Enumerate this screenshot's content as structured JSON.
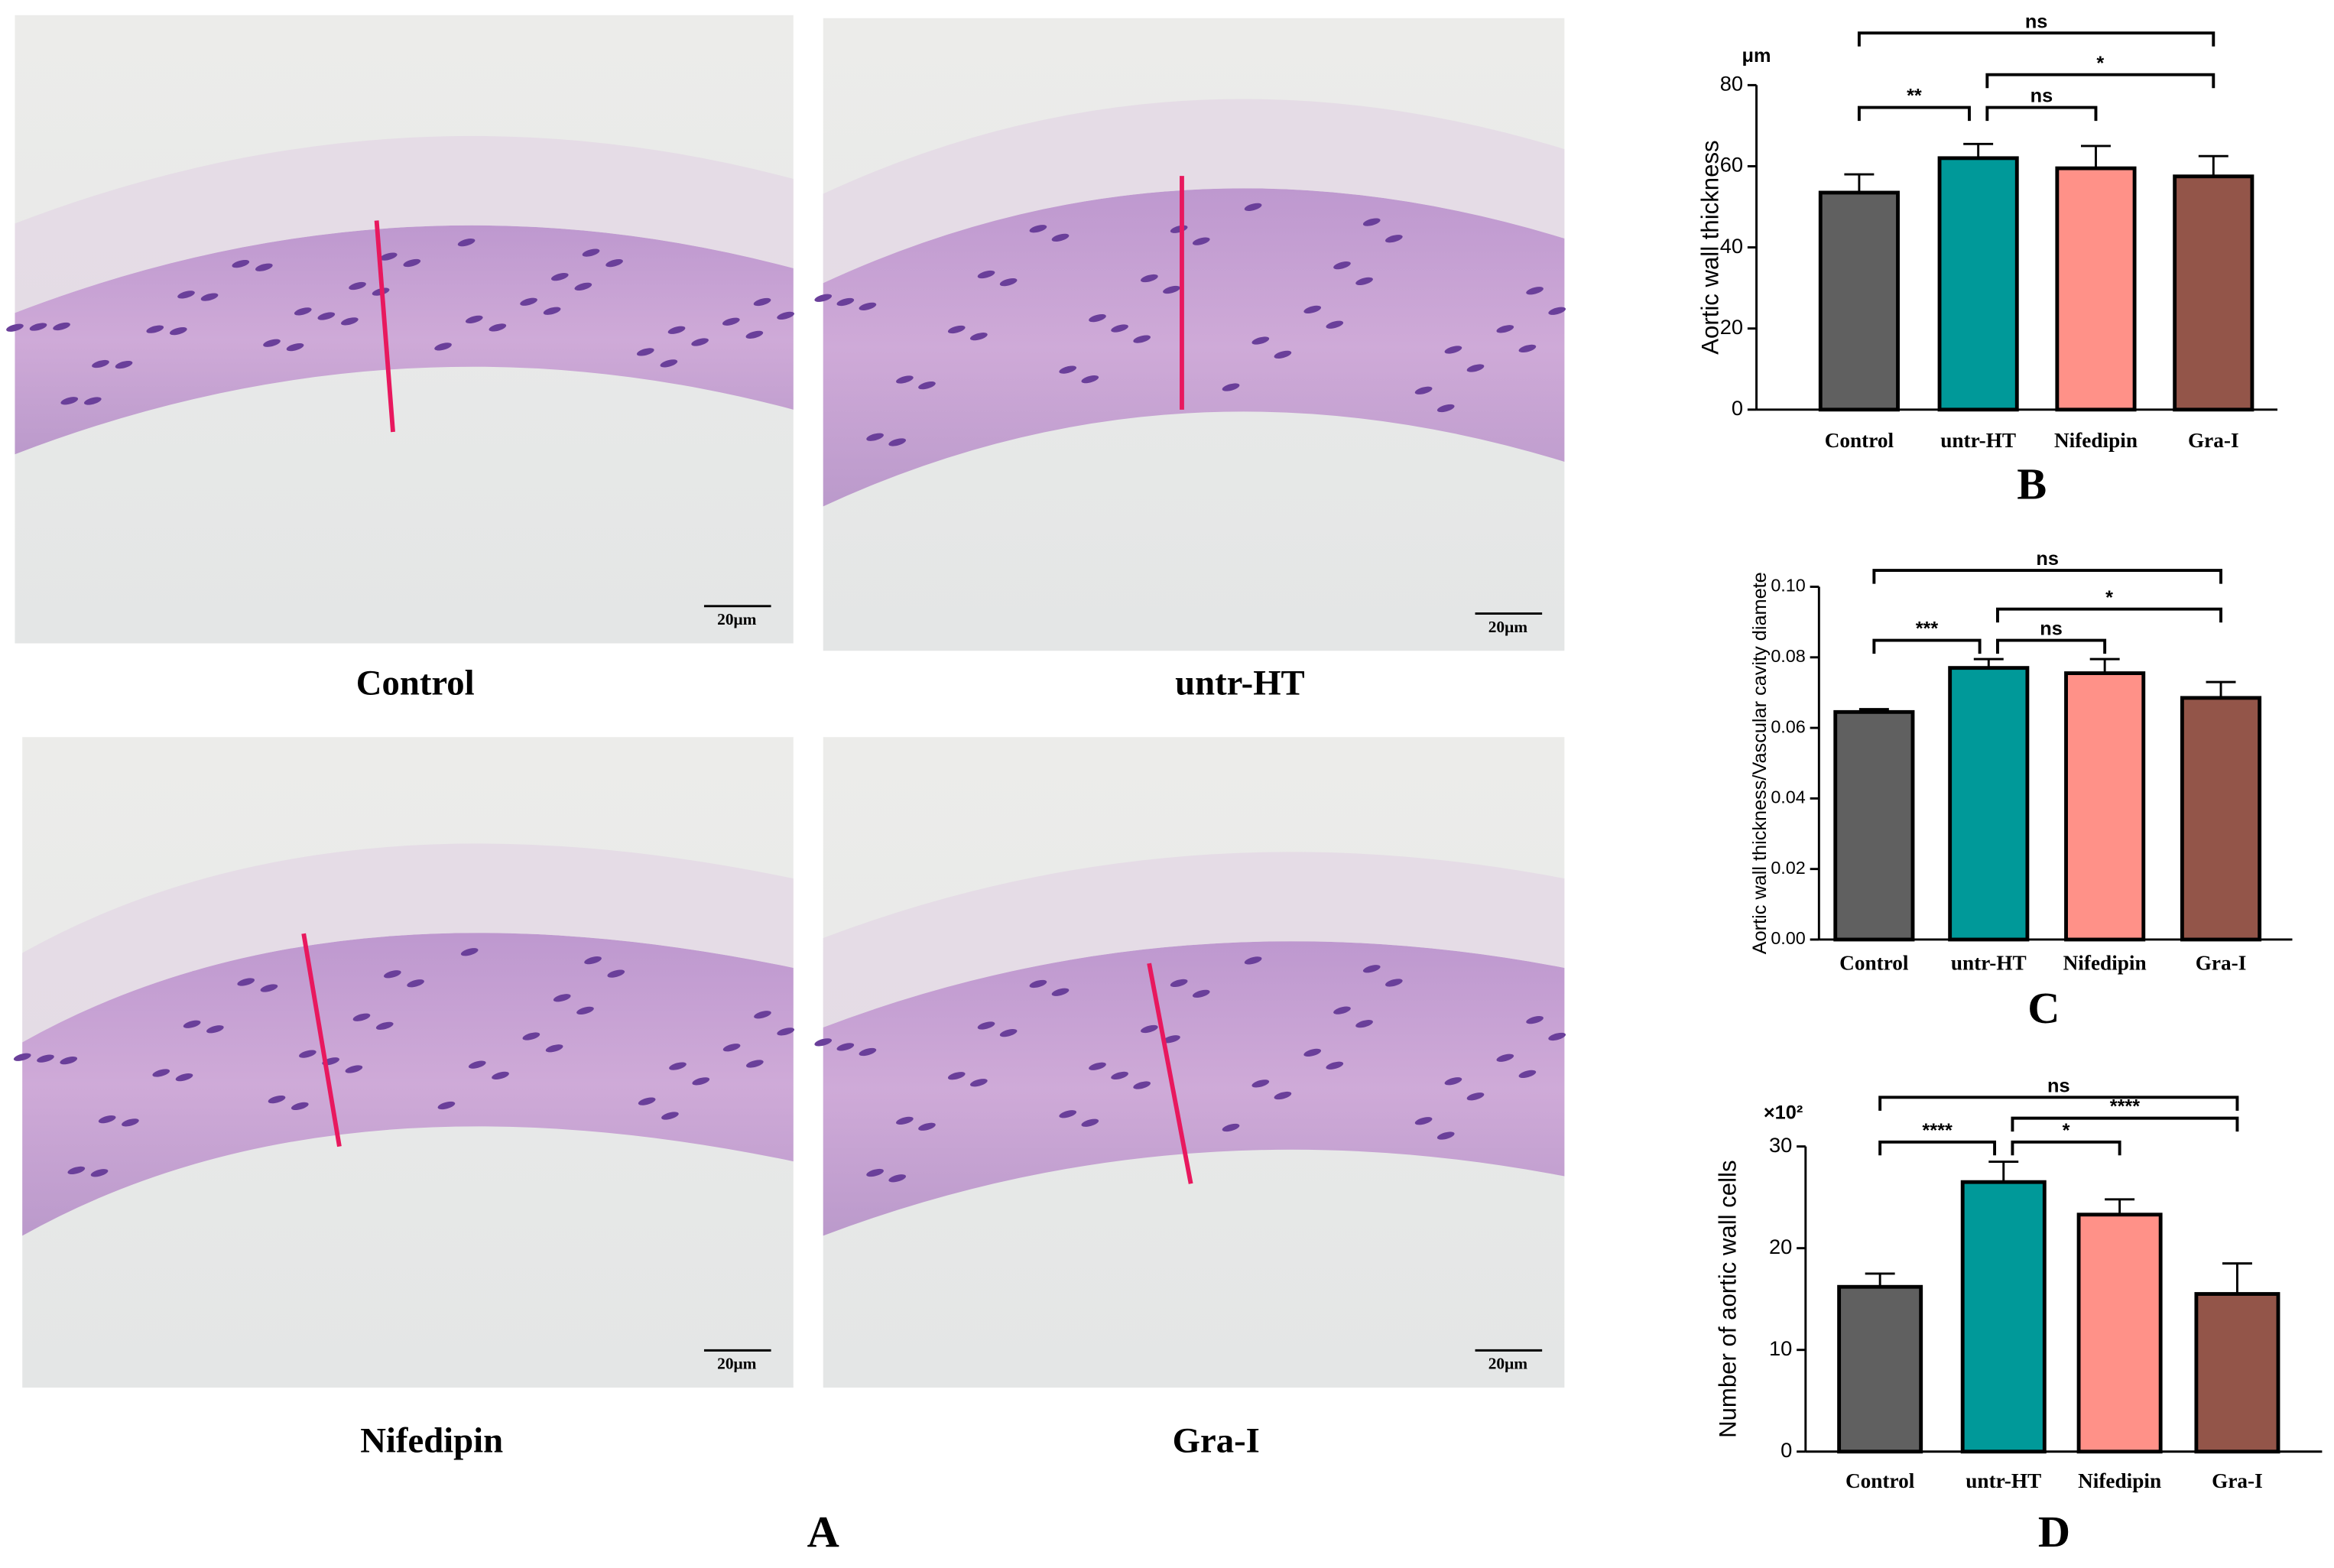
{
  "micrographs": {
    "panel": "A",
    "images": [
      {
        "label": "Control",
        "scale_bar": "20μm"
      },
      {
        "label": "untr-HT",
        "scale_bar": "20μm"
      },
      {
        "label": "Nifedipin",
        "scale_bar": "20μm"
      },
      {
        "label": "Gra-I",
        "scale_bar": "20μm"
      }
    ]
  },
  "chart_data": [
    {
      "type": "bar",
      "panel": "B",
      "y_label": "Aortic wall thickness",
      "y_unit": "μm",
      "categories": [
        "Control",
        "untr-HT",
        "Nifedipin",
        "Gra-I"
      ],
      "values": [
        53.5,
        62,
        59.5,
        57.5
      ],
      "errors": [
        4.5,
        3.5,
        5.5,
        5
      ],
      "colors": [
        "#606060",
        "#009999",
        "#ff9188",
        "#935549"
      ],
      "ylim": [
        0,
        80
      ],
      "yticks": [
        0,
        20,
        40,
        60,
        80
      ],
      "annotations": [
        {
          "text": "ns",
          "from": 0,
          "to": 3
        },
        {
          "text": "*",
          "from": 1,
          "to": 3
        },
        {
          "text": "**",
          "from": 0,
          "to": 1
        },
        {
          "text": "ns",
          "from": 1,
          "to": 2
        }
      ]
    },
    {
      "type": "bar",
      "panel": "C",
      "y_label": "Aortic wall thickness/Vascular cavity diamete",
      "categories": [
        "Control",
        "untr-HT",
        "Nifedipin",
        "Gra-I"
      ],
      "values": [
        0.0645,
        0.077,
        0.0755,
        0.0685
      ],
      "errors": [
        0.0008,
        0.0025,
        0.004,
        0.0045
      ],
      "colors": [
        "#606060",
        "#009999",
        "#ff9188",
        "#935549"
      ],
      "ylim": [
        0,
        0.1
      ],
      "yticks": [
        {
          "value": 0,
          "label": "0.00"
        },
        0.02,
        0.04,
        0.06,
        0.08,
        {
          "value": 0.1,
          "label": "0.10"
        }
      ],
      "annotations": [
        {
          "text": "ns",
          "from": 0,
          "to": 3
        },
        {
          "text": "*",
          "from": 1,
          "to": 3
        },
        {
          "text": "***",
          "from": 0,
          "to": 1
        },
        {
          "text": "ns",
          "from": 1,
          "to": 2
        }
      ]
    },
    {
      "type": "bar",
      "panel": "D",
      "y_label": "Number of aortic wall cells",
      "y_unit": "×10²",
      "categories": [
        "Control",
        "untr-HT",
        "Nifedipin",
        "Gra-I"
      ],
      "values": [
        16.2,
        26.5,
        23.3,
        15.5
      ],
      "errors": [
        1.3,
        2,
        1.5,
        3
      ],
      "colors": [
        "#606060",
        "#009999",
        "#ff9188",
        "#935549"
      ],
      "ylim": [
        0,
        30
      ],
      "yticks": [
        0,
        10,
        20,
        30
      ],
      "annotations": [
        {
          "text": "ns",
          "from": 0,
          "to": 3
        },
        {
          "text": "****",
          "from": 1,
          "to": 3
        },
        {
          "text": "****",
          "from": 0,
          "to": 1
        },
        {
          "text": "*",
          "from": 1,
          "to": 2
        }
      ]
    }
  ]
}
